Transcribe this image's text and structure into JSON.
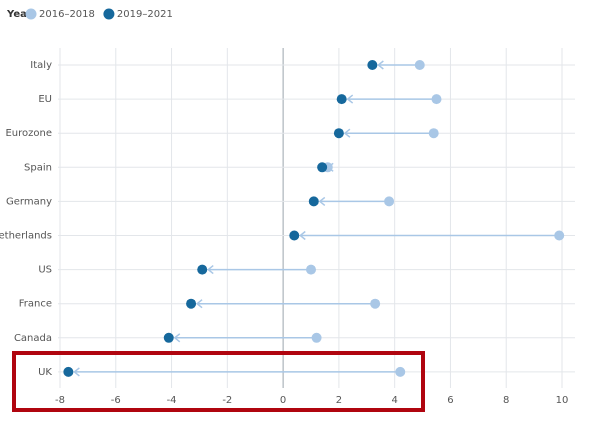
{
  "chart_data": {
    "type": "dumbbell",
    "legend_title": "Year",
    "categories": [
      "Italy",
      "EU",
      "Eurozone",
      "Spain",
      "Germany",
      "Netherlands",
      "US",
      "France",
      "Canada",
      "UK"
    ],
    "series": [
      {
        "name": "2016–2018",
        "color": "#a9c7e6",
        "values": [
          4.9,
          5.5,
          5.4,
          1.6,
          3.8,
          9.9,
          1.0,
          3.3,
          1.2,
          4.2
        ]
      },
      {
        "name": "2019–2021",
        "color": "#16689c",
        "values": [
          3.2,
          2.1,
          2.0,
          1.4,
          1.1,
          0.4,
          -2.9,
          -3.3,
          -4.1,
          -7.7
        ]
      }
    ],
    "xlim": [
      -8,
      10
    ],
    "xticks": [
      -8,
      -6,
      -4,
      -2,
      0,
      2,
      4,
      6,
      8,
      10
    ],
    "grid": true
  }
}
